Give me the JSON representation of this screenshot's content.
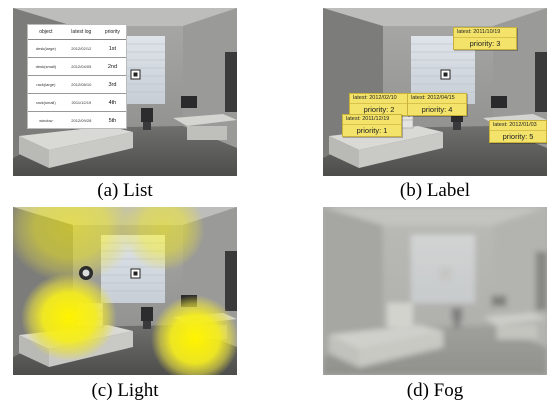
{
  "panels": {
    "a": {
      "caption": "(a) List"
    },
    "b": {
      "caption": "(b) Label"
    },
    "c": {
      "caption": "(c) Light"
    },
    "d": {
      "caption": "(d) Fog"
    }
  },
  "list_table": {
    "headers": [
      "object",
      "latest log",
      "priority"
    ],
    "rows": [
      {
        "object": "desk(large)",
        "latest_log": "2012/02/12",
        "priority": "1st"
      },
      {
        "object": "desk(small)",
        "latest_log": "2012/04/05",
        "priority": "2nd"
      },
      {
        "object": "rack(large)",
        "latest_log": "2012/08/10",
        "priority": "3rd"
      },
      {
        "object": "rack(small)",
        "latest_log": "2011/12/19",
        "priority": "4th"
      },
      {
        "object": "window",
        "latest_log": "2012/09/28",
        "priority": "5th"
      }
    ]
  },
  "labels": [
    {
      "latest": "latest: 2011/10/19",
      "priority": "priority: 3"
    },
    {
      "latest": "latest: 2012/02/10",
      "priority": "priority: 2"
    },
    {
      "latest": "latest: 2012/04/15",
      "priority": "priority: 4"
    },
    {
      "latest": "latest: 2011/12/19",
      "priority": "priority: 1"
    },
    {
      "latest": "latest: 2012/01/03",
      "priority": "priority: 5"
    }
  ],
  "colors": {
    "label_fill": "#f4e36a",
    "light_spot": "#f2ea2a"
  }
}
